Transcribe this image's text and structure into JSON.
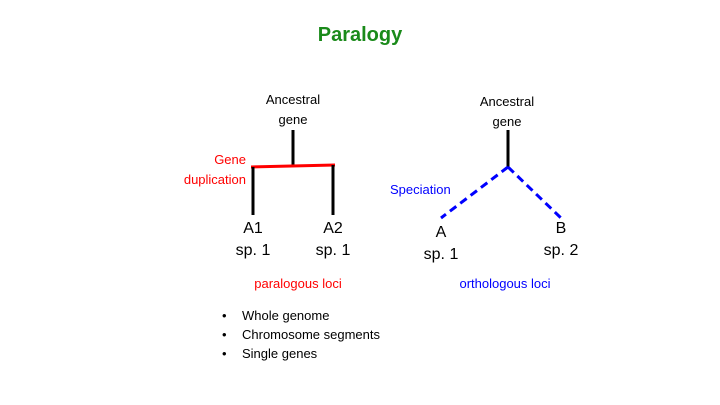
{
  "title": "Paralogy",
  "colors": {
    "title": "#1a8a1a",
    "paralogy": "#ff0000",
    "orthology": "#0000ff",
    "tree": "#000000"
  },
  "paralogy": {
    "root_label": [
      "Ancestral",
      "gene"
    ],
    "event_label": [
      "Gene",
      "duplication"
    ],
    "leaves": [
      {
        "name": "A1",
        "species": "sp. 1"
      },
      {
        "name": "A2",
        "species": "sp. 1"
      }
    ],
    "caption": "paralogous loci"
  },
  "orthology": {
    "root_label": [
      "Ancestral",
      "gene"
    ],
    "event_label": "Speciation",
    "leaves": [
      {
        "name": "A",
        "species": "sp. 1"
      },
      {
        "name": "B",
        "species": "sp. 2"
      }
    ],
    "caption": "orthologous loci"
  },
  "bullets": [
    "Whole genome",
    "Chromosome segments",
    "Single genes"
  ],
  "bullet_symbol": "•"
}
